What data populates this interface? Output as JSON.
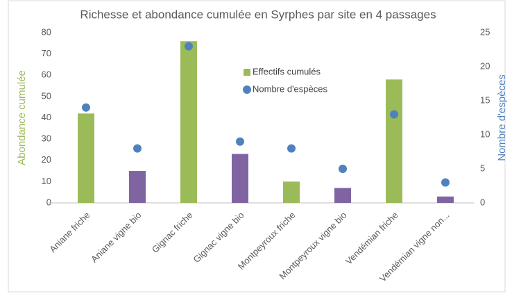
{
  "chart_data": {
    "type": "bar",
    "title": "Richesse et abondance cumulée en Syrphes par site en 4 passages",
    "y_label": "Abondance cumulée",
    "y2_label": "Nombre d'espèces",
    "categories": [
      "Aniane friche",
      "Aniane vigne bio",
      "Gignac friche",
      "Gignac vigne bio",
      "Montpeyroux friche",
      "Montpeyroux vigne bio",
      "Vendémian friche",
      "Vendémian vigne non..."
    ],
    "series": [
      {
        "name": "Effectifs cumulés",
        "type": "bar",
        "color": "#9bbb59",
        "colors": [
          "#9bbb59",
          "#8064a2",
          "#9bbb59",
          "#8064a2",
          "#9bbb59",
          "#8064a2",
          "#9bbb59",
          "#8064a2"
        ],
        "values": [
          42,
          15,
          76,
          23,
          10,
          7,
          58,
          3
        ]
      },
      {
        "name": "Nombre d'espèces",
        "type": "scatter",
        "axis": "y2",
        "color": "#4f81bd",
        "values": [
          14,
          8,
          23,
          9,
          8,
          5,
          13,
          3
        ]
      }
    ],
    "ylim": [
      0,
      80
    ],
    "yticks": [
      0,
      10,
      20,
      30,
      40,
      50,
      60,
      70,
      80
    ],
    "y2lim": [
      0,
      25
    ],
    "y2ticks": [
      0,
      5,
      10,
      15,
      20,
      25
    ],
    "y_label_color": "#9bbb59",
    "y2_label_color": "#4f81bd"
  }
}
